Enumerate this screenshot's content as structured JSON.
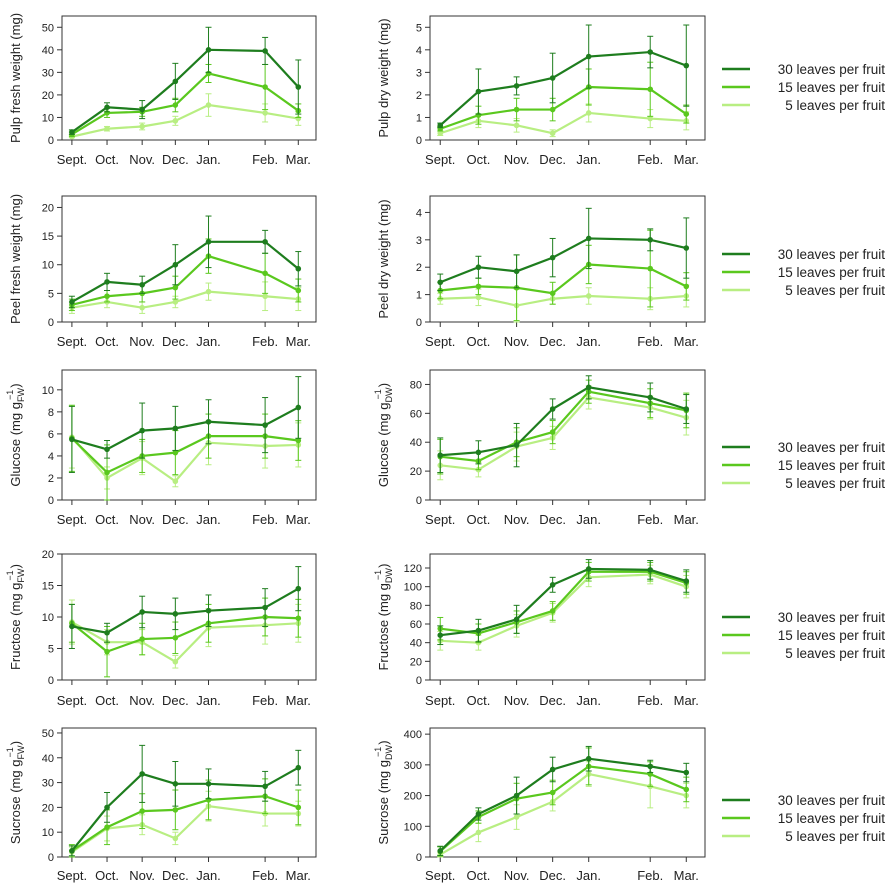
{
  "months": [
    "Sept.",
    "Oct.",
    "Nov.",
    "Dec.",
    "Jan.",
    "Feb.",
    "Mar."
  ],
  "series_names": [
    "30 leaves per fruit",
    "15 leaves per fruit",
    "5 leaves per fruit"
  ],
  "colors": {
    "s30": "#1e7d1e",
    "s15": "#5ac81e",
    "s5": "#b8ee82"
  },
  "chart_data": [
    {
      "type": "line",
      "id": "pulp-fw",
      "ylabel": "Pulp fresh weight (mg)",
      "ylim": [
        0,
        55
      ],
      "yticks": [
        0,
        10,
        20,
        30,
        40,
        50
      ],
      "x": [
        0.1,
        1,
        1.9,
        2.75,
        3.6,
        5.05,
        5.9
      ],
      "series": [
        {
          "name": "30 leaves per fruit",
          "values": [
            3.5,
            14.5,
            13.5,
            26,
            40,
            39.5,
            23.5
          ],
          "err": [
            1,
            2,
            4,
            8,
            10,
            6,
            12
          ]
        },
        {
          "name": "15 leaves per fruit",
          "values": [
            2.5,
            12,
            12.5,
            15.5,
            29.5,
            23.5,
            13
          ],
          "err": [
            1,
            2,
            2,
            3,
            4,
            10,
            3
          ]
        },
        {
          "name": "5 leaves per fruit",
          "values": [
            1.5,
            5,
            6,
            8.5,
            15.5,
            12,
            9.5
          ],
          "err": [
            0.5,
            1,
            1.5,
            2,
            5,
            4,
            3
          ]
        }
      ]
    },
    {
      "type": "line",
      "id": "pulp-dw",
      "ylabel": "Pulp dry weight (mg)",
      "ylim": [
        0,
        5.5
      ],
      "yticks": [
        0,
        1,
        2,
        3,
        4,
        5
      ],
      "x": [
        0.1,
        1,
        1.9,
        2.75,
        3.6,
        5.05,
        5.9
      ],
      "series": [
        {
          "name": "30 leaves per fruit",
          "values": [
            0.65,
            2.15,
            2.4,
            2.75,
            3.7,
            3.9,
            3.3
          ],
          "err": [
            0.1,
            1,
            0.4,
            1.1,
            1.4,
            0.7,
            1.8
          ]
        },
        {
          "name": "15 leaves per fruit",
          "values": [
            0.5,
            1.1,
            1.35,
            1.35,
            2.35,
            2.25,
            1.15
          ],
          "err": [
            0.1,
            0.4,
            0.5,
            0.5,
            0.8,
            1.2,
            0.4
          ]
        },
        {
          "name": "5 leaves per fruit",
          "values": [
            0.3,
            0.85,
            0.65,
            0.3,
            1.2,
            0.95,
            0.85
          ],
          "err": [
            0.1,
            0.3,
            0.3,
            0.15,
            0.4,
            0.4,
            0.4
          ]
        }
      ]
    },
    {
      "type": "line",
      "id": "peel-fw",
      "ylabel": "Peel fresh weight (mg)",
      "ylim": [
        0,
        22
      ],
      "yticks": [
        0,
        5,
        10,
        15,
        20
      ],
      "x": [
        0.1,
        1,
        1.9,
        2.75,
        3.6,
        5.05,
        5.9
      ],
      "series": [
        {
          "name": "30 leaves per fruit",
          "values": [
            3.5,
            7,
            6.5,
            10,
            14,
            14,
            9.3
          ],
          "err": [
            1,
            1.5,
            1.5,
            3.5,
            4.5,
            2,
            3
          ]
        },
        {
          "name": "15 leaves per fruit",
          "values": [
            3,
            4.5,
            5,
            6,
            11.5,
            8.5,
            5.5
          ],
          "err": [
            1,
            1,
            1.5,
            2,
            3,
            3.5,
            2
          ]
        },
        {
          "name": "5 leaves per fruit",
          "values": [
            2.5,
            3.5,
            2.5,
            3.5,
            5.3,
            4.5,
            4
          ],
          "err": [
            1,
            1,
            1,
            1,
            1.5,
            2.5,
            2
          ]
        }
      ]
    },
    {
      "type": "line",
      "id": "peel-dw",
      "ylabel": "Peel dry weight (mg)",
      "ylim": [
        0,
        4.6
      ],
      "yticks": [
        0,
        1,
        2,
        3,
        4
      ],
      "x": [
        0.1,
        1,
        1.9,
        2.75,
        3.6,
        5.05,
        5.9
      ],
      "series": [
        {
          "name": "30 leaves per fruit",
          "values": [
            1.45,
            2,
            1.85,
            2.35,
            3.05,
            3,
            2.7
          ],
          "err": [
            0.3,
            0.4,
            0.6,
            0.7,
            1.1,
            0.4,
            1.1
          ]
        },
        {
          "name": "15 leaves per fruit",
          "values": [
            1.15,
            1.3,
            1.25,
            1.05,
            2.1,
            1.95,
            1.3
          ],
          "err": [
            0.3,
            0.3,
            1.2,
            0.4,
            0.7,
            1.4,
            0.5
          ]
        },
        {
          "name": "5 leaves per fruit",
          "values": [
            0.85,
            0.9,
            0.6,
            0.85,
            0.95,
            0.85,
            0.95
          ],
          "err": [
            0.2,
            0.3,
            0.6,
            0.2,
            0.3,
            0.4,
            0.4
          ]
        }
      ]
    },
    {
      "type": "line",
      "id": "glucose-fw",
      "ylabel": "Glucose (mg g",
      "ysub": "FW",
      "ysup": "−1",
      "ylabel_end": ")",
      "ylim": [
        0,
        11.8
      ],
      "yticks": [
        0,
        2,
        4,
        6,
        8,
        10
      ],
      "x": [
        0.1,
        1,
        1.9,
        2.75,
        3.6,
        5.05,
        5.9
      ],
      "series": [
        {
          "name": "30 leaves per fruit",
          "values": [
            5.5,
            4.6,
            6.3,
            6.5,
            7.1,
            6.8,
            8.4
          ],
          "err": [
            3,
            0.8,
            2.5,
            2,
            2,
            2.5,
            2.8
          ]
        },
        {
          "name": "15 leaves per fruit",
          "values": [
            5.6,
            2.5,
            4,
            4.3,
            5.8,
            5.8,
            5.4
          ],
          "err": [
            3,
            2.5,
            1.5,
            2,
            2,
            2,
            1.8
          ]
        },
        {
          "name": "5 leaves per fruit",
          "values": [
            5.7,
            2,
            3.8,
            1.7,
            5.2,
            4.9,
            5
          ],
          "err": [
            2.8,
            1,
            1.5,
            0.5,
            2,
            2,
            2
          ]
        }
      ]
    },
    {
      "type": "line",
      "id": "glucose-dw",
      "ylabel": "Glucose (mg g",
      "ysub": "DW",
      "ysup": "−1",
      "ylabel_end": ")",
      "ylim": [
        0,
        90
      ],
      "yticks": [
        0,
        20,
        40,
        60,
        80
      ],
      "x": [
        0.1,
        1,
        1.9,
        2.75,
        3.6,
        5.05,
        5.9
      ],
      "series": [
        {
          "name": "30 leaves per fruit",
          "values": [
            31,
            33,
            38,
            63,
            78,
            71,
            63
          ],
          "err": [
            12,
            8,
            15,
            7,
            8,
            10,
            10
          ]
        },
        {
          "name": "15 leaves per fruit",
          "values": [
            30,
            27,
            40,
            47,
            75,
            67,
            62
          ],
          "err": [
            12,
            6,
            10,
            8,
            8,
            10,
            12
          ]
        },
        {
          "name": "5 leaves per fruit",
          "values": [
            24,
            21,
            37,
            43,
            71,
            64,
            57
          ],
          "err": [
            10,
            5,
            10,
            8,
            8,
            8,
            12
          ]
        }
      ]
    },
    {
      "type": "line",
      "id": "fructose-fw",
      "ylabel": "Fructose (mg g",
      "ysub": "FW",
      "ysup": "−1",
      "ylabel_end": ")",
      "ylim": [
        0,
        20
      ],
      "yticks": [
        0,
        5,
        10,
        15,
        20
      ],
      "x": [
        0.1,
        1,
        1.9,
        2.75,
        3.6,
        5.05,
        5.9
      ],
      "series": [
        {
          "name": "30 leaves per fruit",
          "values": [
            8.5,
            7.5,
            10.8,
            10.5,
            11,
            11.5,
            14.5
          ],
          "err": [
            3.5,
            1.5,
            2.5,
            2.5,
            2.5,
            3,
            3.5
          ]
        },
        {
          "name": "15 leaves per fruit",
          "values": [
            9,
            4.5,
            6.5,
            6.7,
            9,
            10,
            9.8
          ],
          "err": [
            3,
            4,
            2.5,
            2.5,
            3,
            3,
            3
          ]
        },
        {
          "name": "5 leaves per fruit",
          "values": [
            9.2,
            6,
            6,
            2.9,
            8.3,
            8.7,
            9
          ],
          "err": [
            3.5,
            2,
            2,
            1,
            3,
            3,
            3
          ]
        }
      ]
    },
    {
      "type": "line",
      "id": "fructose-dw",
      "ylabel": "Fructose (mg g",
      "ysub": "DW",
      "ysup": "−1",
      "ylabel_end": ")",
      "ylim": [
        0,
        135
      ],
      "yticks": [
        0,
        20,
        40,
        60,
        80,
        100,
        120
      ],
      "x": [
        0.1,
        1,
        1.9,
        2.75,
        3.6,
        5.05,
        5.9
      ],
      "series": [
        {
          "name": "30 leaves per fruit",
          "values": [
            48,
            53,
            65,
            102,
            119,
            118,
            106
          ],
          "err": [
            10,
            12,
            15,
            8,
            10,
            10,
            12
          ]
        },
        {
          "name": "15 leaves per fruit",
          "values": [
            55,
            50,
            62,
            74,
            116,
            116,
            104
          ],
          "err": [
            12,
            10,
            12,
            10,
            10,
            10,
            12
          ]
        },
        {
          "name": "5 leaves per fruit",
          "values": [
            42,
            40,
            58,
            72,
            110,
            113,
            100
          ],
          "err": [
            10,
            8,
            12,
            10,
            10,
            10,
            12
          ]
        }
      ]
    },
    {
      "type": "line",
      "id": "sucrose-fw",
      "ylabel": "Sucrose (mg g",
      "ysub": "FW",
      "ysup": "−1",
      "ylabel_end": ")",
      "ylim": [
        0,
        52
      ],
      "yticks": [
        0,
        10,
        20,
        30,
        40,
        50
      ],
      "x": [
        0.1,
        1,
        1.9,
        2.75,
        3.6,
        5.05,
        5.9
      ],
      "series": [
        {
          "name": "30 leaves per fruit",
          "values": [
            2.5,
            20,
            33.5,
            29.5,
            29.5,
            28.5,
            36
          ],
          "err": [
            2,
            6,
            11.5,
            9,
            6,
            6,
            7
          ]
        },
        {
          "name": "15 leaves per fruit",
          "values": [
            2.5,
            12,
            18.5,
            19,
            23,
            24.5,
            20
          ],
          "err": [
            2.5,
            7,
            7,
            8,
            8,
            7,
            7
          ]
        },
        {
          "name": "5 leaves per fruit",
          "values": [
            2,
            11.5,
            13,
            7.5,
            20.5,
            17.5,
            17.5
          ],
          "err": [
            2,
            5,
            4,
            2.5,
            6,
            5,
            5
          ]
        }
      ]
    },
    {
      "type": "line",
      "id": "sucrose-dw",
      "ylabel": "Sucrose (mg g",
      "ysub": "DW",
      "ysup": "−1",
      "ylabel_end": ")",
      "ylim": [
        0,
        420
      ],
      "yticks": [
        0,
        100,
        200,
        300,
        400
      ],
      "x": [
        0.1,
        1,
        1.9,
        2.75,
        3.6,
        5.05,
        5.9
      ],
      "series": [
        {
          "name": "30 leaves per fruit",
          "values": [
            20,
            140,
            200,
            285,
            320,
            295,
            275
          ],
          "err": [
            15,
            20,
            60,
            40,
            40,
            20,
            30
          ]
        },
        {
          "name": "15 leaves per fruit",
          "values": [
            18,
            130,
            190,
            210,
            295,
            270,
            220
          ],
          "err": [
            15,
            20,
            50,
            40,
            60,
            40,
            40
          ]
        },
        {
          "name": "5 leaves per fruit",
          "values": [
            8,
            80,
            130,
            180,
            270,
            230,
            200
          ],
          "err": [
            8,
            30,
            40,
            30,
            40,
            70,
            40
          ]
        }
      ]
    }
  ]
}
